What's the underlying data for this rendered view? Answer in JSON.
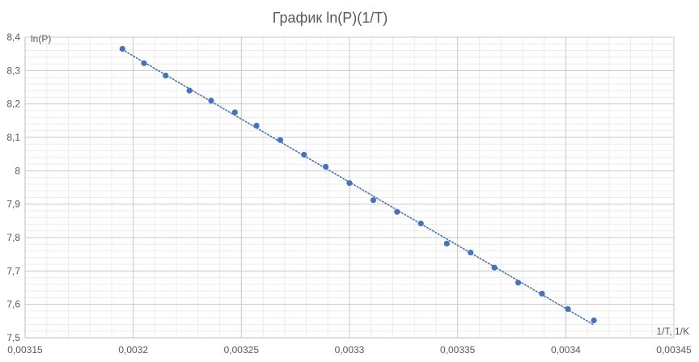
{
  "chart_data": {
    "type": "scatter",
    "title": "График ln(P)(1/T)",
    "xlabel": "1/T, 1/K",
    "ylabel": "ln(P)",
    "xlim": [
      0.00315,
      0.00345
    ],
    "ylim": [
      7.5,
      8.4
    ],
    "x_ticks": [
      0.00315,
      0.0032,
      0.00325,
      0.0033,
      0.00335,
      0.0034,
      0.00345
    ],
    "x_tick_labels": [
      "0,00315",
      "0,0032",
      "0,00325",
      "0,0033",
      "0,00335",
      "0,0034",
      "0,00345"
    ],
    "y_ticks": [
      7.5,
      7.6,
      7.7,
      7.8,
      7.9,
      8.0,
      8.1,
      8.2,
      8.3,
      8.4
    ],
    "y_tick_labels": [
      "7,5",
      "7,6",
      "7,7",
      "7,8",
      "7,9",
      "8",
      "8,1",
      "8,2",
      "8,3",
      "8,4"
    ],
    "grid": true,
    "series": [
      {
        "color": "#4472C4",
        "x": [
          0.003195,
          0.003205,
          0.003215,
          0.003226,
          0.003236,
          0.003247,
          0.003257,
          0.003268,
          0.003279,
          0.003289,
          0.0033,
          0.003311,
          0.003322,
          0.003333,
          0.003345,
          0.003356,
          0.003367,
          0.003378,
          0.003389,
          0.003401,
          0.003413
        ],
        "y": [
          8.365,
          8.322,
          8.285,
          8.24,
          8.21,
          8.175,
          8.135,
          8.092,
          8.048,
          8.012,
          7.963,
          7.912,
          7.877,
          7.842,
          7.782,
          7.755,
          7.71,
          7.665,
          7.632,
          7.586,
          7.552
        ]
      }
    ],
    "trendline": {
      "type": "linear",
      "style": "dotted",
      "color": "#4472C4",
      "x_range": [
        0.003195,
        0.003413
      ]
    }
  }
}
